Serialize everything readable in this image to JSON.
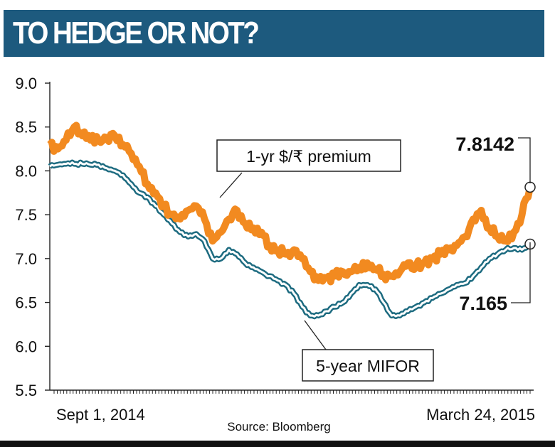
{
  "header": {
    "title": "TO HEDGE OR NOT?"
  },
  "source": "Source: Bloomberg",
  "colors": {
    "banner": "#1d5a7e",
    "premium": "#f28a20",
    "mifor": "#1d6b80",
    "axis": "#222222"
  },
  "chart_data": {
    "type": "line",
    "title": "TO HEDGE OR NOT?",
    "x_start_label": "Sept 1, 2014",
    "x_end_label": "March 24, 2015",
    "ylim": [
      5.5,
      9.0
    ],
    "yticks": [
      "9.0",
      "8.5",
      "8.0",
      "7.5",
      "7.0",
      "6.5",
      "6.0",
      "5.5"
    ],
    "grid": false,
    "series": [
      {
        "name": "1-yr $/₹ premium",
        "end_label": "7.8142",
        "values": [
          8.3,
          8.25,
          8.35,
          8.5,
          8.4,
          8.35,
          8.35,
          8.38,
          8.4,
          8.3,
          8.2,
          8.05,
          7.85,
          7.75,
          7.6,
          7.5,
          7.45,
          7.55,
          7.6,
          7.45,
          7.2,
          7.3,
          7.45,
          7.55,
          7.4,
          7.35,
          7.3,
          7.15,
          7.1,
          7.05,
          7.1,
          7.0,
          6.85,
          6.75,
          6.78,
          6.8,
          6.85,
          6.85,
          6.9,
          6.95,
          6.88,
          6.82,
          6.8,
          6.85,
          6.95,
          6.92,
          6.95,
          7.0,
          7.05,
          7.1,
          7.15,
          7.25,
          7.45,
          7.55,
          7.35,
          7.25,
          7.2,
          7.3,
          7.5,
          7.8142
        ]
      },
      {
        "name": "5-year MIFOR",
        "end_label": "7.165",
        "values": [
          8.05,
          8.07,
          8.08,
          8.08,
          8.08,
          8.07,
          8.07,
          8.03,
          8.0,
          7.95,
          7.85,
          7.75,
          7.7,
          7.6,
          7.5,
          7.4,
          7.3,
          7.25,
          7.28,
          7.2,
          7.0,
          7.0,
          7.1,
          7.05,
          6.95,
          6.9,
          6.85,
          6.8,
          6.75,
          6.7,
          6.6,
          6.45,
          6.35,
          6.35,
          6.4,
          6.45,
          6.5,
          6.6,
          6.7,
          6.7,
          6.65,
          6.5,
          6.35,
          6.35,
          6.4,
          6.45,
          6.5,
          6.55,
          6.6,
          6.65,
          6.7,
          6.72,
          6.8,
          6.9,
          7.0,
          7.05,
          7.1,
          7.12,
          7.1,
          7.165
        ]
      }
    ]
  }
}
